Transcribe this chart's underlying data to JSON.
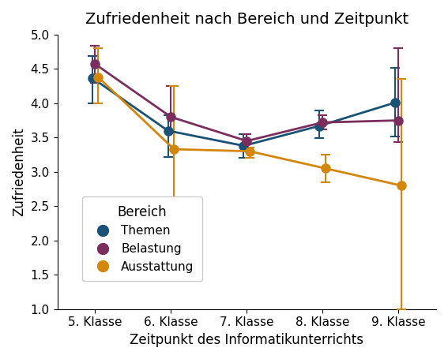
{
  "title": "Zufriedenheit nach Bereich und Zeitpunkt",
  "xlabel": "Zeitpunkt des Informatikunterrichts",
  "ylabel": "Zufriedenheit",
  "legend_title": "Bereich",
  "x_labels": [
    "5. Klasse",
    "6. Klasse",
    "7. Klasse",
    "8. Klasse",
    "9. Klasse"
  ],
  "x_values": [
    0,
    1,
    2,
    3,
    4
  ],
  "series": [
    {
      "name": "Themen",
      "color": "#1a5276",
      "means": [
        4.37,
        3.6,
        3.38,
        3.67,
        4.01
      ],
      "yerr_low": [
        0.37,
        0.38,
        0.17,
        0.18,
        0.5
      ],
      "yerr_high": [
        0.32,
        0.22,
        0.17,
        0.22,
        0.5
      ]
    },
    {
      "name": "Belastung",
      "color": "#7b2d5e",
      "means": [
        4.57,
        3.8,
        3.45,
        3.72,
        3.75
      ],
      "yerr_low": [
        0.27,
        0.22,
        0.1,
        0.1,
        0.32
      ],
      "yerr_high": [
        0.27,
        0.45,
        0.1,
        0.1,
        1.05
      ]
    },
    {
      "name": "Ausstattung",
      "color": "#d4860b",
      "means": [
        4.38,
        3.33,
        3.3,
        3.05,
        2.8
      ],
      "yerr_low": [
        0.38,
        0.7,
        0.1,
        0.2,
        1.8
      ],
      "yerr_high": [
        0.42,
        0.92,
        0.05,
        0.2,
        1.55
      ]
    }
  ],
  "ylim": [
    1.0,
    5.0
  ],
  "yticks": [
    1.0,
    1.5,
    2.0,
    2.5,
    3.0,
    3.5,
    4.0,
    4.5,
    5.0
  ],
  "figsize": [
    5.67,
    4.55
  ],
  "dpi": 100
}
